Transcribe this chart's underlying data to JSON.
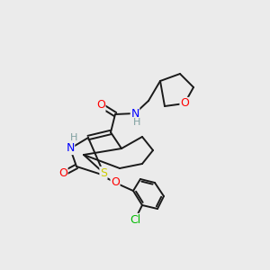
{
  "background_color": "#ebebeb",
  "bond_color": "#1a1a1a",
  "atom_colors": {
    "O": "#ff0000",
    "N": "#0000ff",
    "S": "#cccc00",
    "Cl": "#00bb00",
    "H": "#7fa0a0",
    "C": "#1a1a1a"
  },
  "font_size_atoms": 9,
  "font_size_H": 8,
  "line_width": 1.4
}
